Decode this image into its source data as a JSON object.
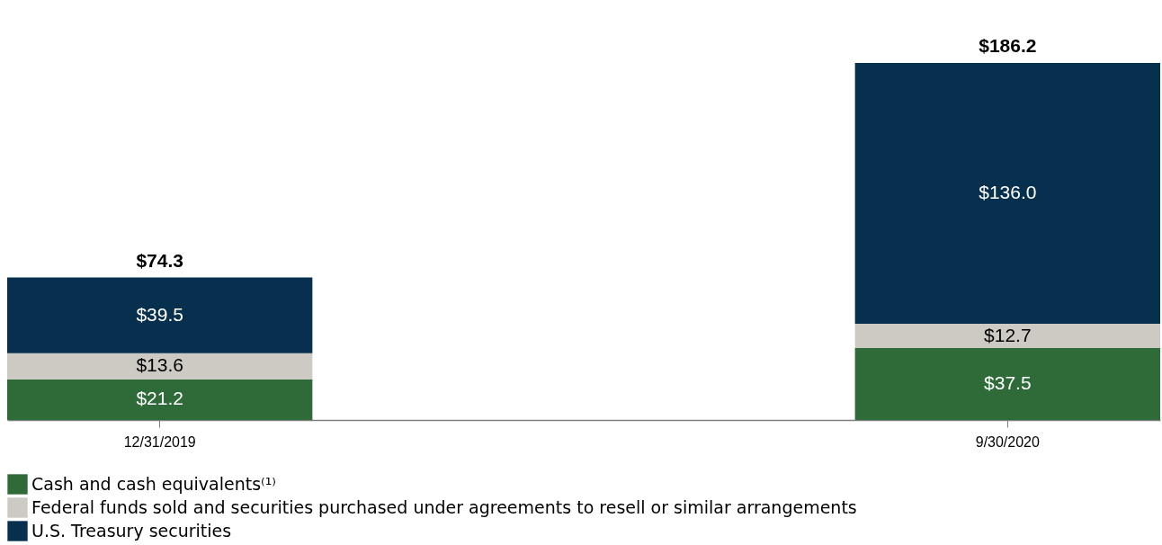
{
  "chart_data": {
    "type": "bar",
    "stacked": true,
    "categories": [
      "12/31/2019",
      "9/30/2020"
    ],
    "series": [
      {
        "name": "Cash and cash equivalents⁽¹⁾",
        "color": "#2e6b38",
        "values": [
          21.2,
          37.5
        ],
        "value_labels": [
          "$21.2",
          "$37.5"
        ]
      },
      {
        "name": "Federal funds sold and securities purchased under agreements to resell or similar arrangements",
        "color": "#cdc9c3",
        "values": [
          13.6,
          12.7
        ],
        "value_labels": [
          "$13.6",
          "$12.7"
        ]
      },
      {
        "name": "U.S. Treasury securities",
        "color": "#06304d",
        "values": [
          39.5,
          136.0
        ],
        "value_labels": [
          "$39.5",
          "$136.0"
        ]
      }
    ],
    "totals": [
      "$74.3",
      "$186.2"
    ],
    "legend": "bottom",
    "grid": false
  }
}
